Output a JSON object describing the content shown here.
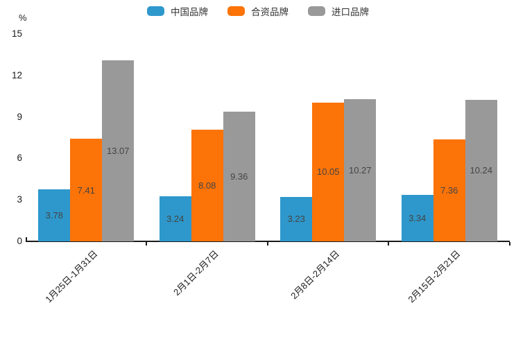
{
  "unit_label": "%",
  "chart_data": {
    "type": "bar",
    "title": "",
    "ylabel": "%",
    "categories": [
      "1月25日-1月31日",
      "2月1日-2月7日",
      "2月8日-2月14日",
      "2月15日-2月21日"
    ],
    "series": [
      {
        "name": "中国品牌",
        "color": "#2E98CC",
        "values": [
          3.78,
          3.24,
          3.23,
          3.34
        ]
      },
      {
        "name": "合资品牌",
        "color": "#FC7308",
        "values": [
          7.41,
          8.08,
          10.05,
          7.36
        ]
      },
      {
        "name": "进口品牌",
        "color": "#999999",
        "values": [
          13.07,
          9.36,
          10.27,
          10.24
        ]
      }
    ],
    "ylim": [
      0,
      15
    ],
    "yticks": [
      0,
      3,
      6,
      9,
      12,
      15
    ],
    "grid": false,
    "legend_position": "top",
    "value_labels": "inside-center",
    "axis_color": "#1a1a1a",
    "value_label_color": "#444444"
  }
}
